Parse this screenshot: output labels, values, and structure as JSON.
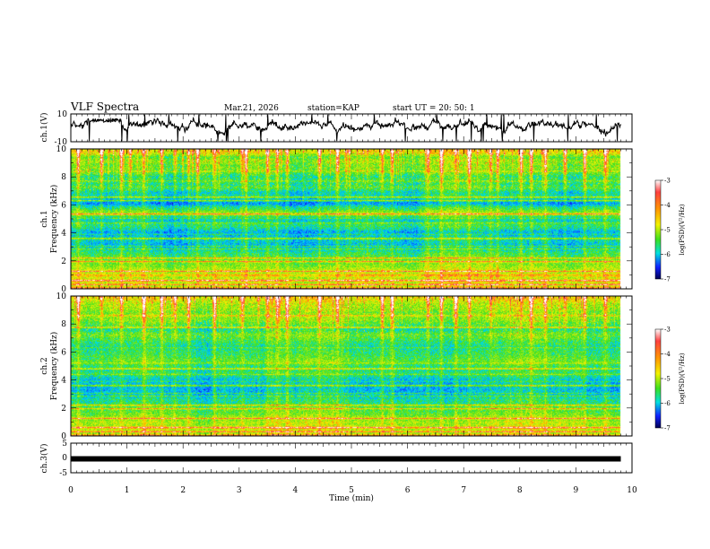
{
  "header": {
    "title": "VLF Spectra",
    "date": "Mar.21, 2026",
    "station": "station=KAP",
    "start": "start UT =  20: 50: 1"
  },
  "colorbar": {
    "label": "log(PSD)(V²/Hz)",
    "ticks": [
      "-3",
      "-4",
      "-5",
      "-6",
      "-7"
    ],
    "range": [
      -7,
      -3
    ]
  },
  "chart_data": [
    {
      "type": "line",
      "name": "ch1-waveform",
      "ylabel": "ch.1(V)",
      "ylim": [
        -10,
        10
      ],
      "ytick_labels": [
        "10",
        "-10"
      ],
      "xlim": [
        0,
        10
      ],
      "trace_end_min": 9.8
    },
    {
      "type": "heatmap",
      "name": "ch1-spectrogram",
      "ylabel_channel": "ch.1",
      "ylabel": "Frequency (kHz)",
      "ylim": [
        0,
        10
      ],
      "ytick_labels": [
        "0",
        "2",
        "4",
        "6",
        "8",
        "10"
      ],
      "xlim": [
        0,
        10
      ],
      "data_end_min": 9.8,
      "band_level_bins_0_to_10kHz": [
        -3.3,
        -4.7,
        -4.5,
        -4.4,
        -4.6,
        -4.0,
        -4.8,
        -4.6,
        -4.8,
        -4.9,
        -5.0,
        -5.2,
        -5.2,
        -5.3,
        -5.5,
        -5.6,
        -5.8,
        -5.7,
        -5.6,
        -5.7,
        -5.9,
        -5.8,
        -5.5,
        -5.3,
        -5.4,
        -5.6,
        -5.5,
        -4.9,
        -4.9,
        -5.2,
        -5.5,
        -6.0,
        -5.9,
        -5.7,
        -5.5,
        -5.6,
        -5.4,
        -5.1,
        -5.4,
        -5.3,
        -5.3,
        -5.4,
        -5.1,
        -5.0,
        -4.9,
        -5.0,
        -4.8,
        -4.8,
        -5.1,
        -4.6,
        -4.2,
        -4.5
      ],
      "lines_kHz": [
        0.3,
        0.6,
        1.25,
        1.95,
        2.2,
        3.6,
        5.35,
        6.3,
        6.55
      ],
      "weak_lines_kHz": [
        2.85,
        3.05,
        3.9,
        4.7,
        5.05,
        7.7,
        8.4
      ],
      "burst_times_min": [
        0.12,
        0.55,
        0.9,
        1.05,
        1.3,
        1.62,
        1.85,
        2.1,
        2.25,
        2.55,
        3.05,
        3.12,
        3.5,
        3.68,
        3.85,
        4.42,
        4.75,
        4.9,
        5.55,
        5.72,
        6.35,
        6.6,
        6.85,
        7.1,
        7.48,
        7.6,
        8.02,
        8.2,
        8.45,
        8.8,
        9.15,
        9.52
      ]
    },
    {
      "type": "heatmap",
      "name": "ch2-spectrogram",
      "ylabel_channel": "ch.2",
      "ylabel": "Frequency (kHz)",
      "ylim": [
        0,
        10
      ],
      "ytick_labels": [
        "0",
        "2",
        "4",
        "6",
        "8",
        "10"
      ],
      "xlim": [
        0,
        10
      ],
      "data_end_min": 9.8,
      "band_level_bins_0_to_10kHz": [
        -3.3,
        -4.7,
        -4.5,
        -4.4,
        -4.6,
        -4.5,
        -4.8,
        -4.7,
        -4.9,
        -5.0,
        -5.1,
        -5.2,
        -5.3,
        -5.3,
        -5.5,
        -5.6,
        -5.7,
        -5.7,
        -5.7,
        -5.6,
        -5.7,
        -5.5,
        -5.3,
        -5.2,
        -5.3,
        -5.2,
        -5.1,
        -4.9,
        -5.0,
        -5.1,
        -5.2,
        -5.2,
        -5.4,
        -5.3,
        -5.2,
        -5.1,
        -5.0,
        -4.9,
        -5.2,
        -5.4,
        -5.1,
        -5.0,
        -4.8,
        -4.8,
        -4.6,
        -4.9,
        -4.7,
        -4.6,
        -4.6,
        -4.4,
        -4.2,
        -4.1
      ],
      "lines_kHz": [
        0.3,
        0.6,
        1.25,
        1.95,
        2.2,
        3.6,
        4.8,
        7.75
      ],
      "weak_lines_kHz": [
        2.85,
        3.05,
        3.9,
        4.4,
        5.2,
        6.3,
        8.6
      ],
      "burst_times_min": [
        0.12,
        0.55,
        0.9,
        1.3,
        1.62,
        1.85,
        2.1,
        2.55,
        3.05,
        3.5,
        3.68,
        3.85,
        4.42,
        4.75,
        5.55,
        5.72,
        6.35,
        6.6,
        6.85,
        7.1,
        7.48,
        8.02,
        8.2,
        8.45,
        8.8,
        9.15,
        9.52
      ]
    },
    {
      "type": "line",
      "name": "ch3-waveform",
      "ylabel": "ch.3(V)",
      "ylim": [
        -5,
        5
      ],
      "ytick_labels": [
        "5",
        "0",
        "-5"
      ],
      "xlim": [
        0,
        10
      ],
      "trace_end_min": 9.8,
      "trace_level_V": -0.3,
      "xlabel": "Time (min)",
      "xtick_labels": [
        "0",
        "1",
        "2",
        "3",
        "4",
        "5",
        "6",
        "7",
        "8",
        "9",
        "10"
      ]
    }
  ]
}
